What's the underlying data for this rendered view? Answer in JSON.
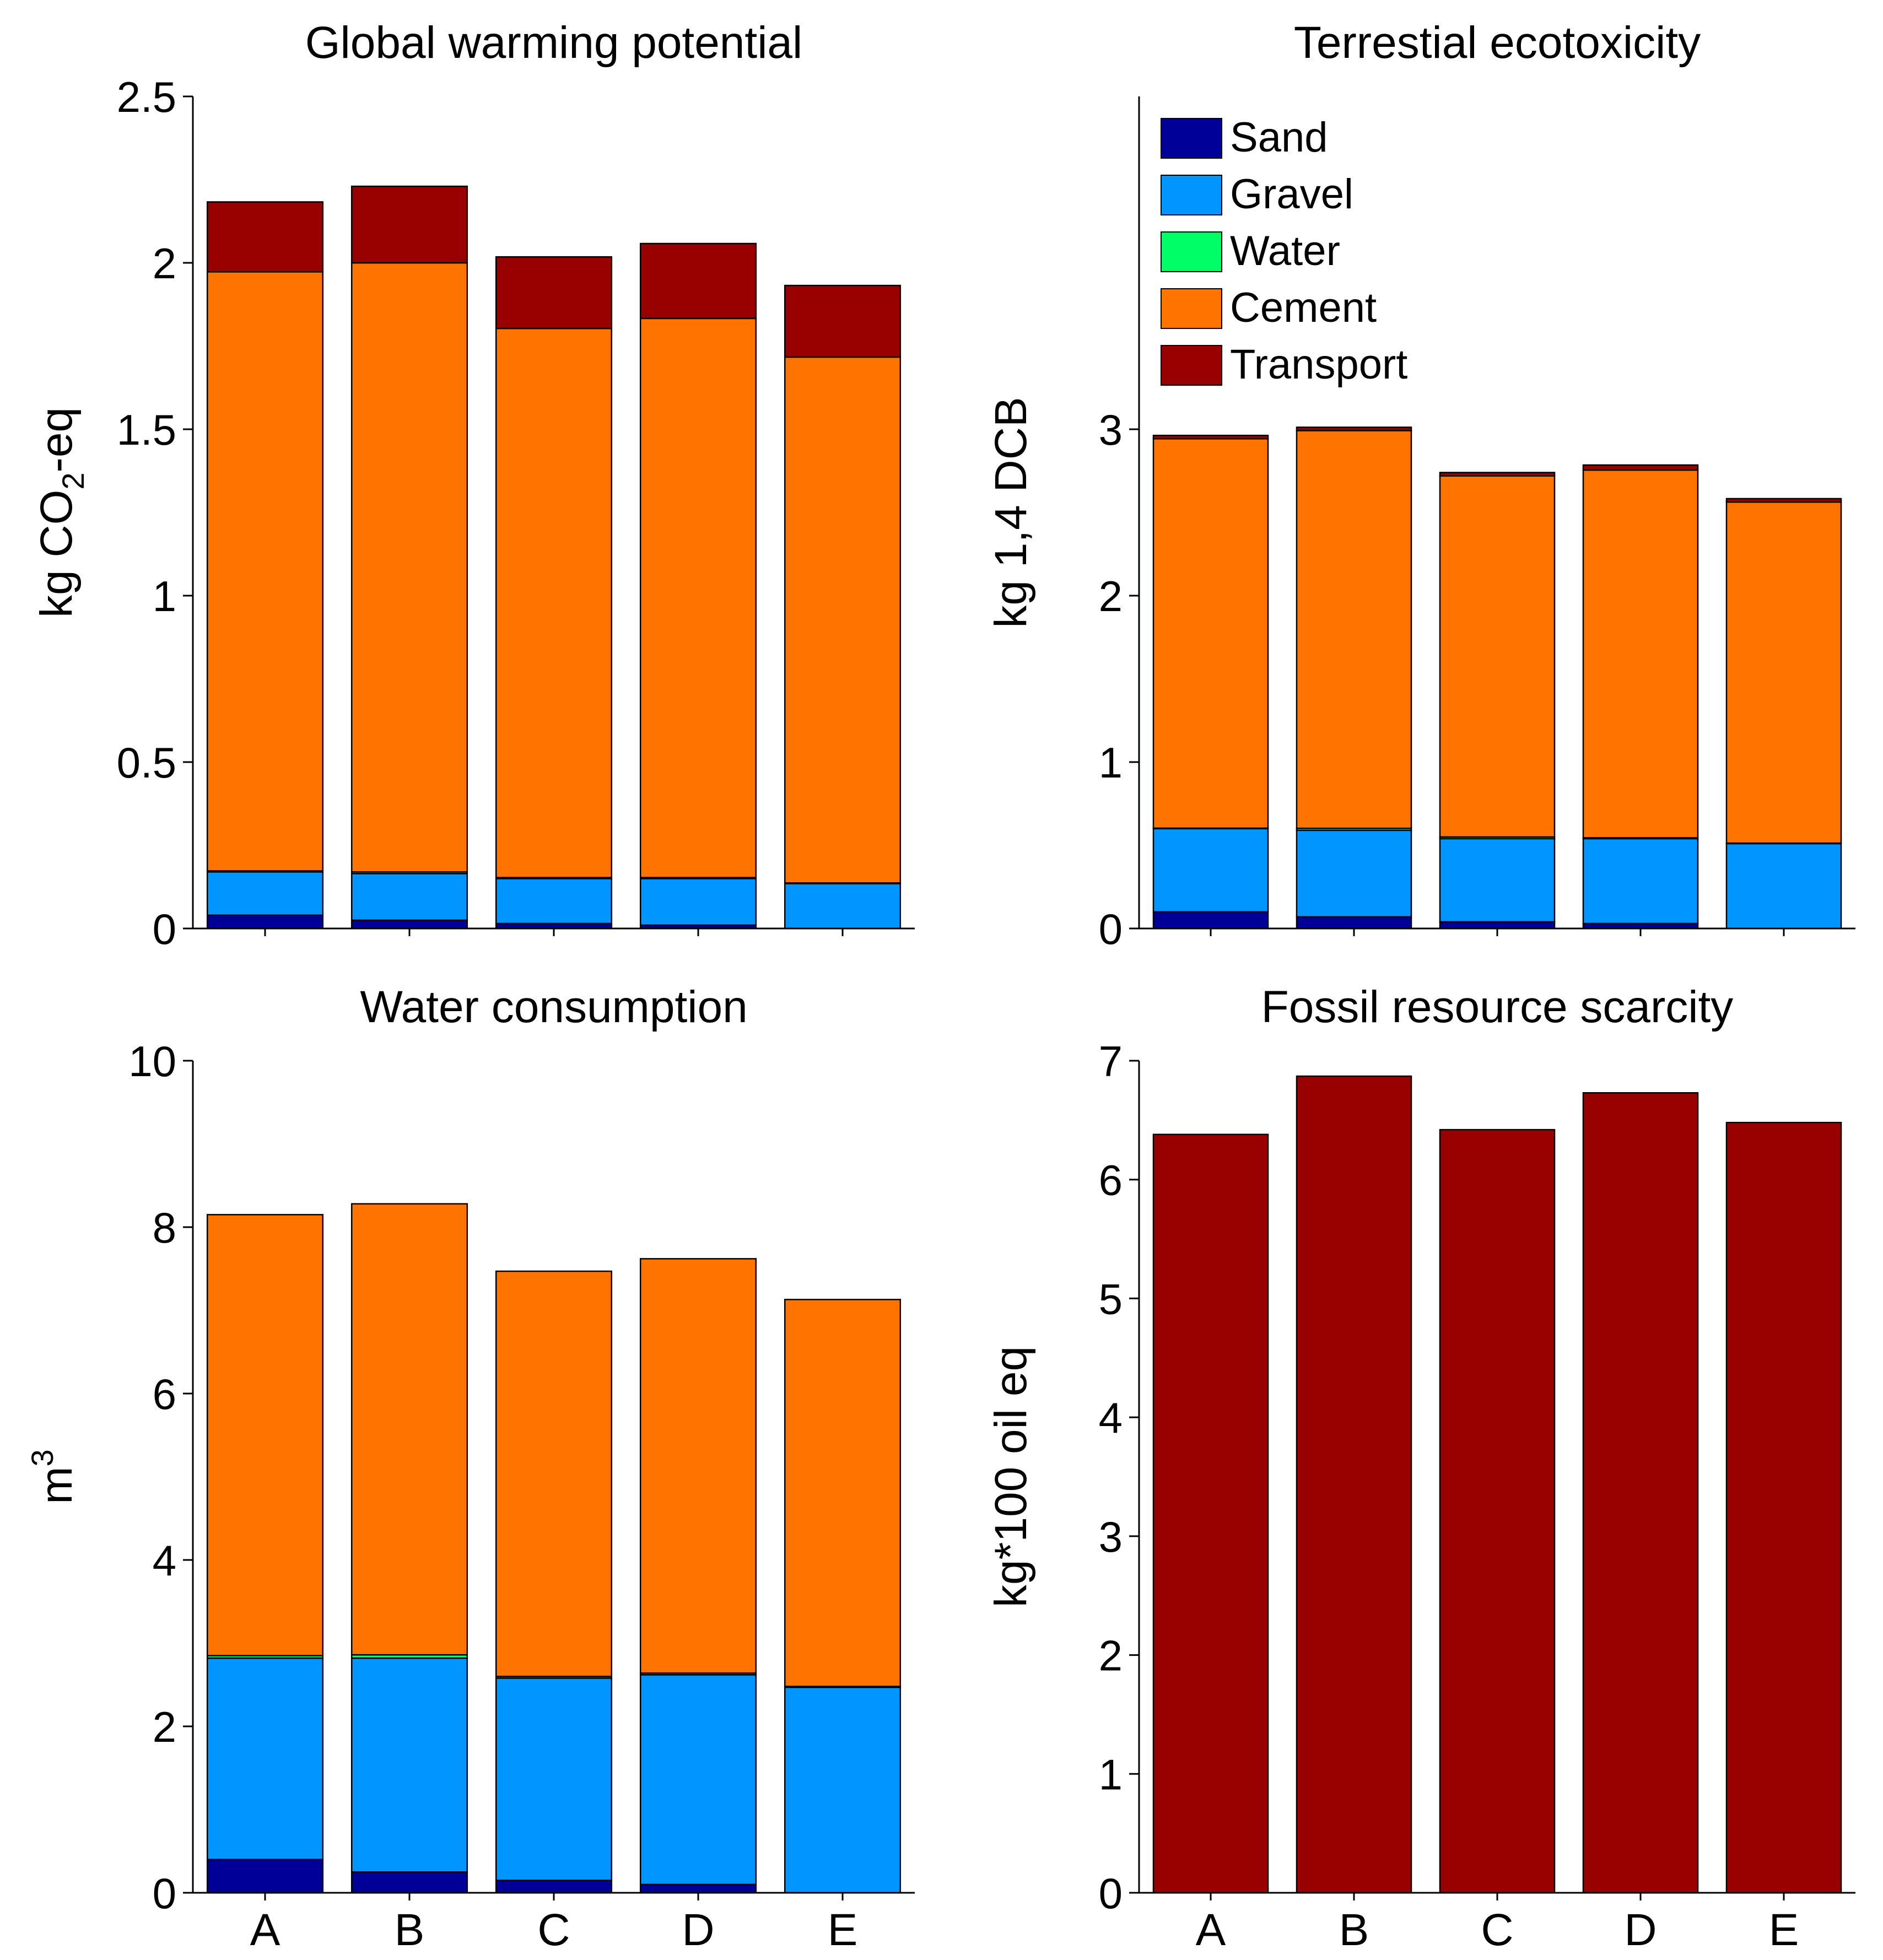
{
  "series_colors": {
    "Sand": "#000099",
    "Gravel": "#0095ff",
    "Water": "#00ff66",
    "Cement": "#ff7300",
    "Transport": "#990000"
  },
  "legend": [
    "Sand",
    "Gravel",
    "Water",
    "Cement",
    "Transport"
  ],
  "chart_data": [
    {
      "type": "bar",
      "stacked": true,
      "title": "Global warming potential",
      "ylabel_main": "kg CO",
      "ylabel_sub": "2",
      "ylabel_tail": "-eq",
      "categories": [
        "A",
        "B",
        "C",
        "D",
        "E"
      ],
      "ylim": [
        0,
        2.5
      ],
      "yticks": [
        "0",
        "0.5",
        "1",
        "1.5",
        "2",
        "2.5"
      ],
      "yticks_values": [
        0,
        0.5,
        1,
        1.5,
        2,
        2.5
      ],
      "show_xlabels": false,
      "series": [
        {
          "name": "Sand",
          "values": [
            0.04,
            0.025,
            0.015,
            0.01,
            0.0
          ]
        },
        {
          "name": "Gravel",
          "values": [
            0.13,
            0.14,
            0.135,
            0.14,
            0.135
          ]
        },
        {
          "name": "Water",
          "values": [
            0.003,
            0.005,
            0.003,
            0.003,
            0.002
          ]
        },
        {
          "name": "Cement",
          "values": [
            1.8,
            1.83,
            1.65,
            1.68,
            1.58
          ]
        },
        {
          "name": "Transport",
          "values": [
            0.21,
            0.23,
            0.215,
            0.225,
            0.215
          ]
        }
      ]
    },
    {
      "type": "bar",
      "stacked": true,
      "title": "Terrestial ecotoxicity",
      "ylabel_main": "kg 1,4 DCB",
      "ylabel_sub": "",
      "ylabel_tail": "",
      "categories": [
        "A",
        "B",
        "C",
        "D",
        "E"
      ],
      "ylim": [
        0,
        5
      ],
      "yticks": [
        "0",
        "1",
        "2",
        "3"
      ],
      "yticks_values": [
        0,
        1,
        2,
        3
      ],
      "show_xlabels": false,
      "show_legend": true,
      "series": [
        {
          "name": "Sand",
          "values": [
            0.1,
            0.07,
            0.04,
            0.03,
            0.0
          ]
        },
        {
          "name": "Gravel",
          "values": [
            0.5,
            0.52,
            0.5,
            0.51,
            0.51
          ]
        },
        {
          "name": "Water",
          "values": [
            0.003,
            0.012,
            0.01,
            0.005,
            0.003
          ]
        },
        {
          "name": "Cement",
          "values": [
            2.34,
            2.39,
            2.17,
            2.21,
            2.05
          ]
        },
        {
          "name": "Transport",
          "values": [
            0.02,
            0.02,
            0.02,
            0.03,
            0.02
          ]
        }
      ]
    },
    {
      "type": "bar",
      "stacked": true,
      "title": "Water consumption",
      "ylabel_main": "m",
      "ylabel_sup": "3",
      "categories": [
        "A",
        "B",
        "C",
        "D",
        "E"
      ],
      "ylim": [
        0,
        10
      ],
      "yticks": [
        "0",
        "2",
        "4",
        "6",
        "8",
        "10"
      ],
      "yticks_values": [
        0,
        2,
        4,
        6,
        8,
        10
      ],
      "show_xlabels": true,
      "series": [
        {
          "name": "Sand",
          "values": [
            0.4,
            0.25,
            0.15,
            0.1,
            0.0
          ]
        },
        {
          "name": "Gravel",
          "values": [
            2.42,
            2.57,
            2.43,
            2.52,
            2.47
          ]
        },
        {
          "name": "Water",
          "values": [
            0.03,
            0.04,
            0.02,
            0.02,
            0.01
          ]
        },
        {
          "name": "Cement",
          "values": [
            5.3,
            5.42,
            4.87,
            4.98,
            4.65
          ]
        },
        {
          "name": "Transport",
          "values": [
            0.0,
            0.0,
            0.0,
            0.0,
            0.0
          ]
        }
      ]
    },
    {
      "type": "bar",
      "stacked": true,
      "title": "Fossil resource scarcity",
      "ylabel_main": "kg*100 oil eq",
      "ylabel_sub": "",
      "ylabel_tail": "",
      "categories": [
        "A",
        "B",
        "C",
        "D",
        "E"
      ],
      "ylim": [
        0,
        7
      ],
      "yticks": [
        "0",
        "1",
        "2",
        "3",
        "4",
        "5",
        "6",
        "7"
      ],
      "yticks_values": [
        0,
        1,
        2,
        3,
        4,
        5,
        6,
        7
      ],
      "show_xlabels": true,
      "series": [
        {
          "name": "Transport",
          "values": [
            6.38,
            6.87,
            6.42,
            6.73,
            6.48
          ]
        }
      ]
    }
  ]
}
